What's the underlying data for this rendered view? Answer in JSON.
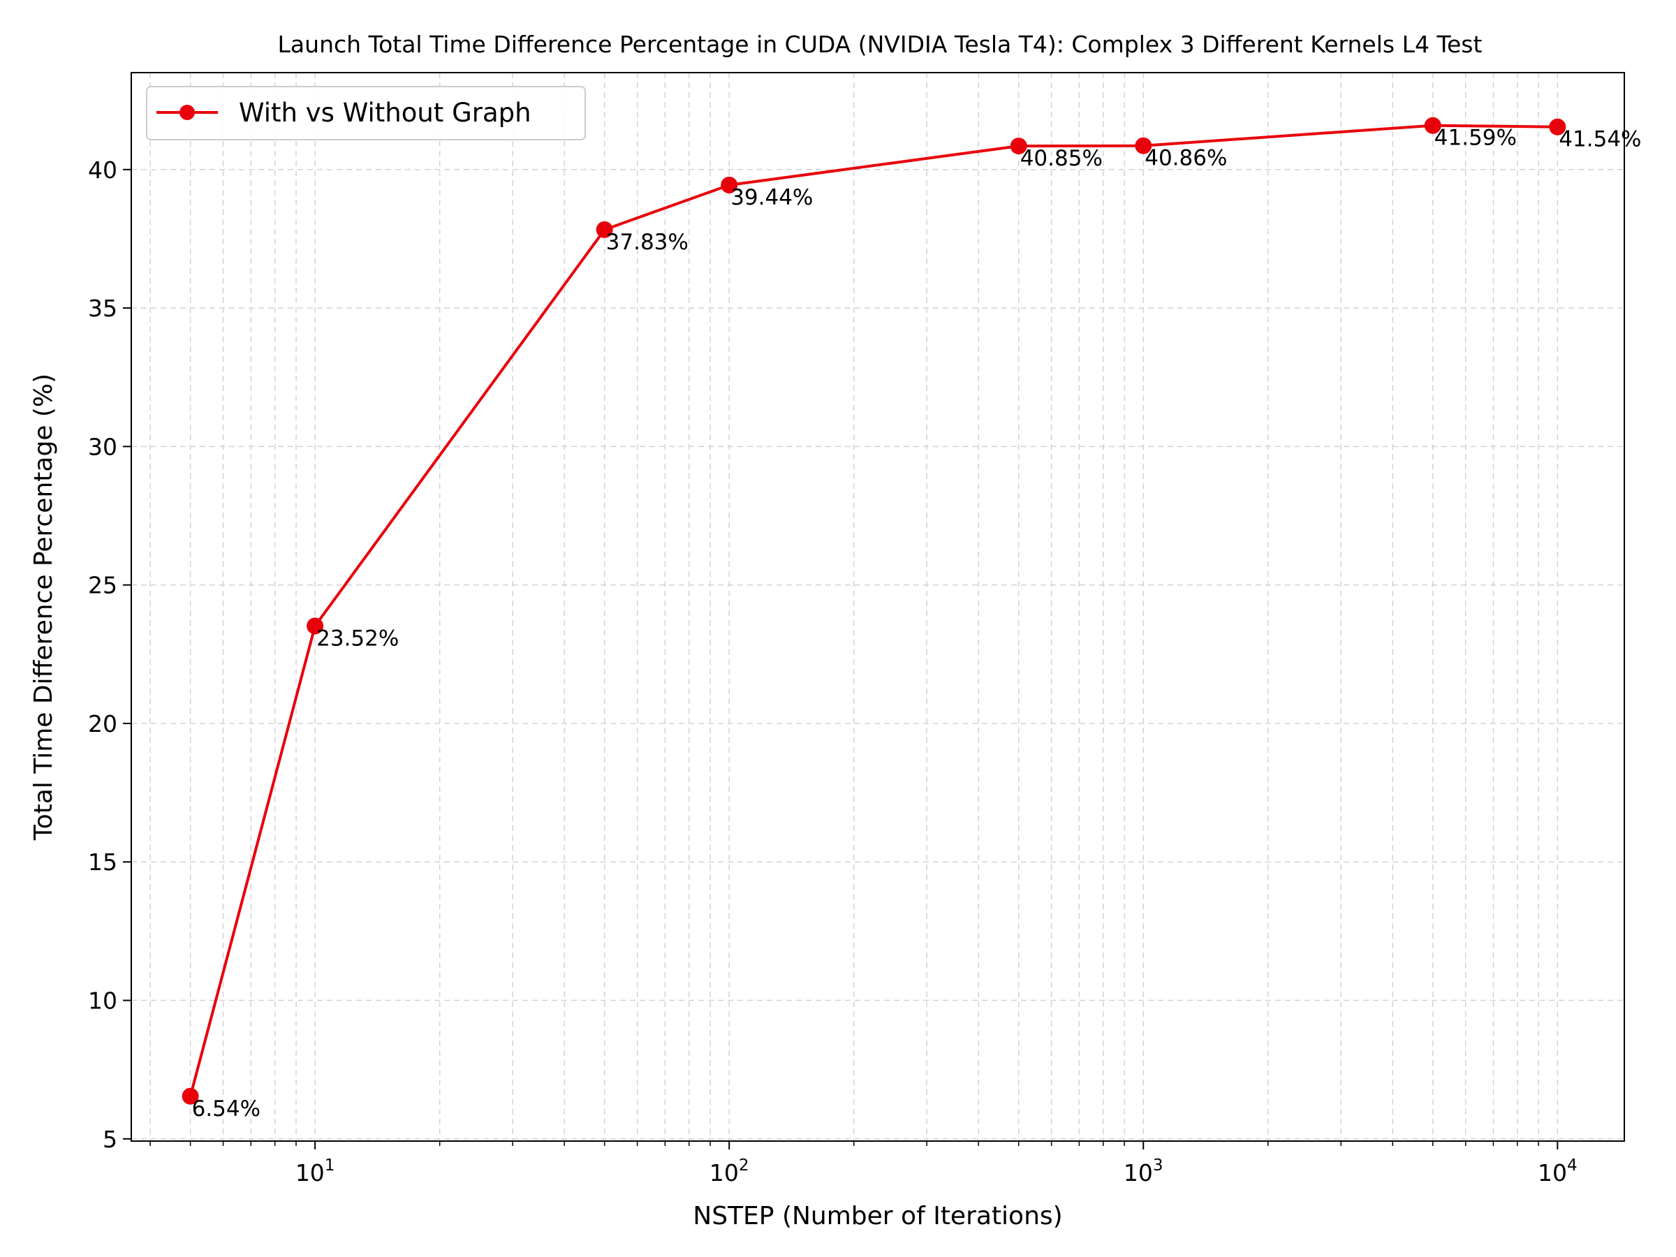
{
  "chart_data": {
    "type": "line",
    "title": "Launch Total Time Difference Percentage in CUDA (NVIDIA Tesla T4): Complex 3 Different Kernels L4 Test",
    "xlabel": "NSTEP (Number of Iterations)",
    "ylabel": "Total Time Difference Percentage (%)",
    "xscale": "log",
    "xlim": [
      3.6,
      14500
    ],
    "ylim": [
      4.92,
      43.5
    ],
    "x_ticks": [
      10,
      100,
      1000,
      10000
    ],
    "x_tick_labels": [
      {
        "base": "10",
        "exp": "1"
      },
      {
        "base": "10",
        "exp": "2"
      },
      {
        "base": "10",
        "exp": "3"
      },
      {
        "base": "10",
        "exp": "4"
      }
    ],
    "y_ticks": [
      5,
      10,
      15,
      20,
      25,
      30,
      35,
      40
    ],
    "y_tick_labels": [
      "5",
      "10",
      "15",
      "20",
      "25",
      "30",
      "35",
      "40"
    ],
    "grid": true,
    "legend_position": "upper-left",
    "series": [
      {
        "name": "With vs Without Graph",
        "color": "#e8000b",
        "marker": "circle",
        "x": [
          5,
          10,
          50,
          100,
          500,
          1000,
          5000,
          10000
        ],
        "y": [
          6.54,
          23.52,
          37.83,
          39.44,
          40.85,
          40.86,
          41.59,
          41.54
        ],
        "labels": [
          "6.54%",
          "23.52%",
          "37.83%",
          "39.44%",
          "40.85%",
          "40.86%",
          "41.59%",
          "41.54%"
        ]
      }
    ]
  }
}
